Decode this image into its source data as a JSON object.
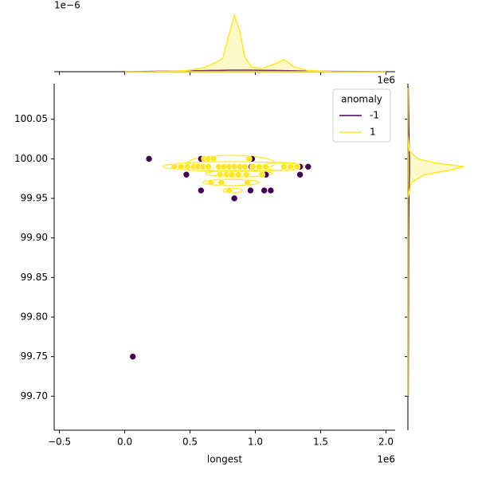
{
  "chart_data": {
    "type": "scatter",
    "x_label": "longest",
    "x_offset_label": "1e6",
    "top_x_offset_label": "1e6",
    "top_y_offset_label": "1e−6",
    "xlim": [
      -540000,
      2070000
    ],
    "ylim": [
      99.657,
      100.095
    ],
    "xticks": [
      {
        "value": -500000,
        "label": "−0.5"
      },
      {
        "value": 0,
        "label": "0.0"
      },
      {
        "value": 500000,
        "label": "0.5"
      },
      {
        "value": 1000000,
        "label": "1.0"
      },
      {
        "value": 1500000,
        "label": "1.5"
      },
      {
        "value": 2000000,
        "label": "2.0"
      }
    ],
    "yticks": [
      {
        "value": 99.7,
        "label": "99.70"
      },
      99.75,
      {
        "value": 99.8,
        "label": "99.80"
      },
      99.85,
      {
        "value": 99.9,
        "label": "99.90"
      },
      99.95,
      {
        "value": 100,
        "label": "100.00"
      },
      100.05
    ],
    "legend_title": "anomaly",
    "legend_position": "upper right",
    "series": [
      {
        "name": "-1",
        "color": "#440154",
        "x": [
          186000,
          584000,
          683000,
          975000,
          472000,
          584000,
          963000,
          1068000,
          1118000,
          839000,
          1342000,
          1404000,
          1342000,
          1081000,
          478000,
          62000,
          970000
        ],
        "values": [
          100.0,
          100.0,
          100.0,
          100.0,
          99.98,
          99.96,
          99.96,
          99.96,
          99.96,
          99.95,
          99.99,
          99.99,
          99.98,
          99.98,
          99.99,
          99.75,
          99.99
        ]
      },
      {
        "name": "1",
        "color": "#fde725",
        "x": [
          610000,
          640000,
          680000,
          950000,
          380000,
          430000,
          480000,
          530000,
          560000,
          600000,
          640000,
          720000,
          760000,
          800000,
          840000,
          880000,
          920000,
          980000,
          1030000,
          1080000,
          1220000,
          1270000,
          1320000,
          730000,
          780000,
          820000,
          870000,
          930000,
          1050000,
          660000,
          740000,
          940000,
          800000
        ],
        "values": [
          100.0,
          100.0,
          100.0,
          100.0,
          99.99,
          99.99,
          99.99,
          99.99,
          99.99,
          99.99,
          99.99,
          99.99,
          99.99,
          99.99,
          99.99,
          99.99,
          99.99,
          99.99,
          99.99,
          99.99,
          99.99,
          99.99,
          99.99,
          99.98,
          99.98,
          99.98,
          99.98,
          99.98,
          99.98,
          99.97,
          99.97,
          99.97,
          99.96
        ]
      }
    ],
    "top_marginal": {
      "ylim": [
        0,
        1.9
      ],
      "x": [
        0,
        200000,
        400000,
        500000,
        600000,
        650000,
        700000,
        750000,
        800000,
        840000,
        880000,
        920000,
        970000,
        1050000,
        1150000,
        1220000,
        1300000,
        1400000,
        1600000,
        1800000,
        2000000
      ],
      "densities": [
        [
          0,
          0.01,
          0.02,
          0.03,
          0.035,
          0.04,
          0.04,
          0.045,
          0.05,
          0.05,
          0.05,
          0.05,
          0.05,
          0.045,
          0.04,
          0.035,
          0.03,
          0.02,
          0.01,
          0.005,
          0
        ],
        [
          0,
          0,
          0.02,
          0.05,
          0.12,
          0.2,
          0.3,
          0.42,
          1.2,
          1.8,
          1.3,
          0.45,
          0.15,
          0.1,
          0.25,
          0.38,
          0.15,
          0.04,
          0,
          0,
          0
        ]
      ]
    },
    "right_marginal": {
      "xlim": [
        0,
        2.0
      ],
      "y": [
        99.7,
        99.9,
        99.95,
        99.97,
        99.98,
        99.985,
        99.99,
        99.995,
        100.0,
        100.01,
        100.03,
        100.09
      ],
      "densities": [
        [
          0.01,
          0.02,
          0.03,
          0.04,
          0.05,
          0.05,
          0.05,
          0.05,
          0.05,
          0.04,
          0.03,
          0.01
        ],
        [
          0,
          0,
          0,
          0.1,
          0.5,
          1.2,
          1.7,
          0.8,
          0.3,
          0.05,
          0,
          0
        ]
      ]
    }
  }
}
